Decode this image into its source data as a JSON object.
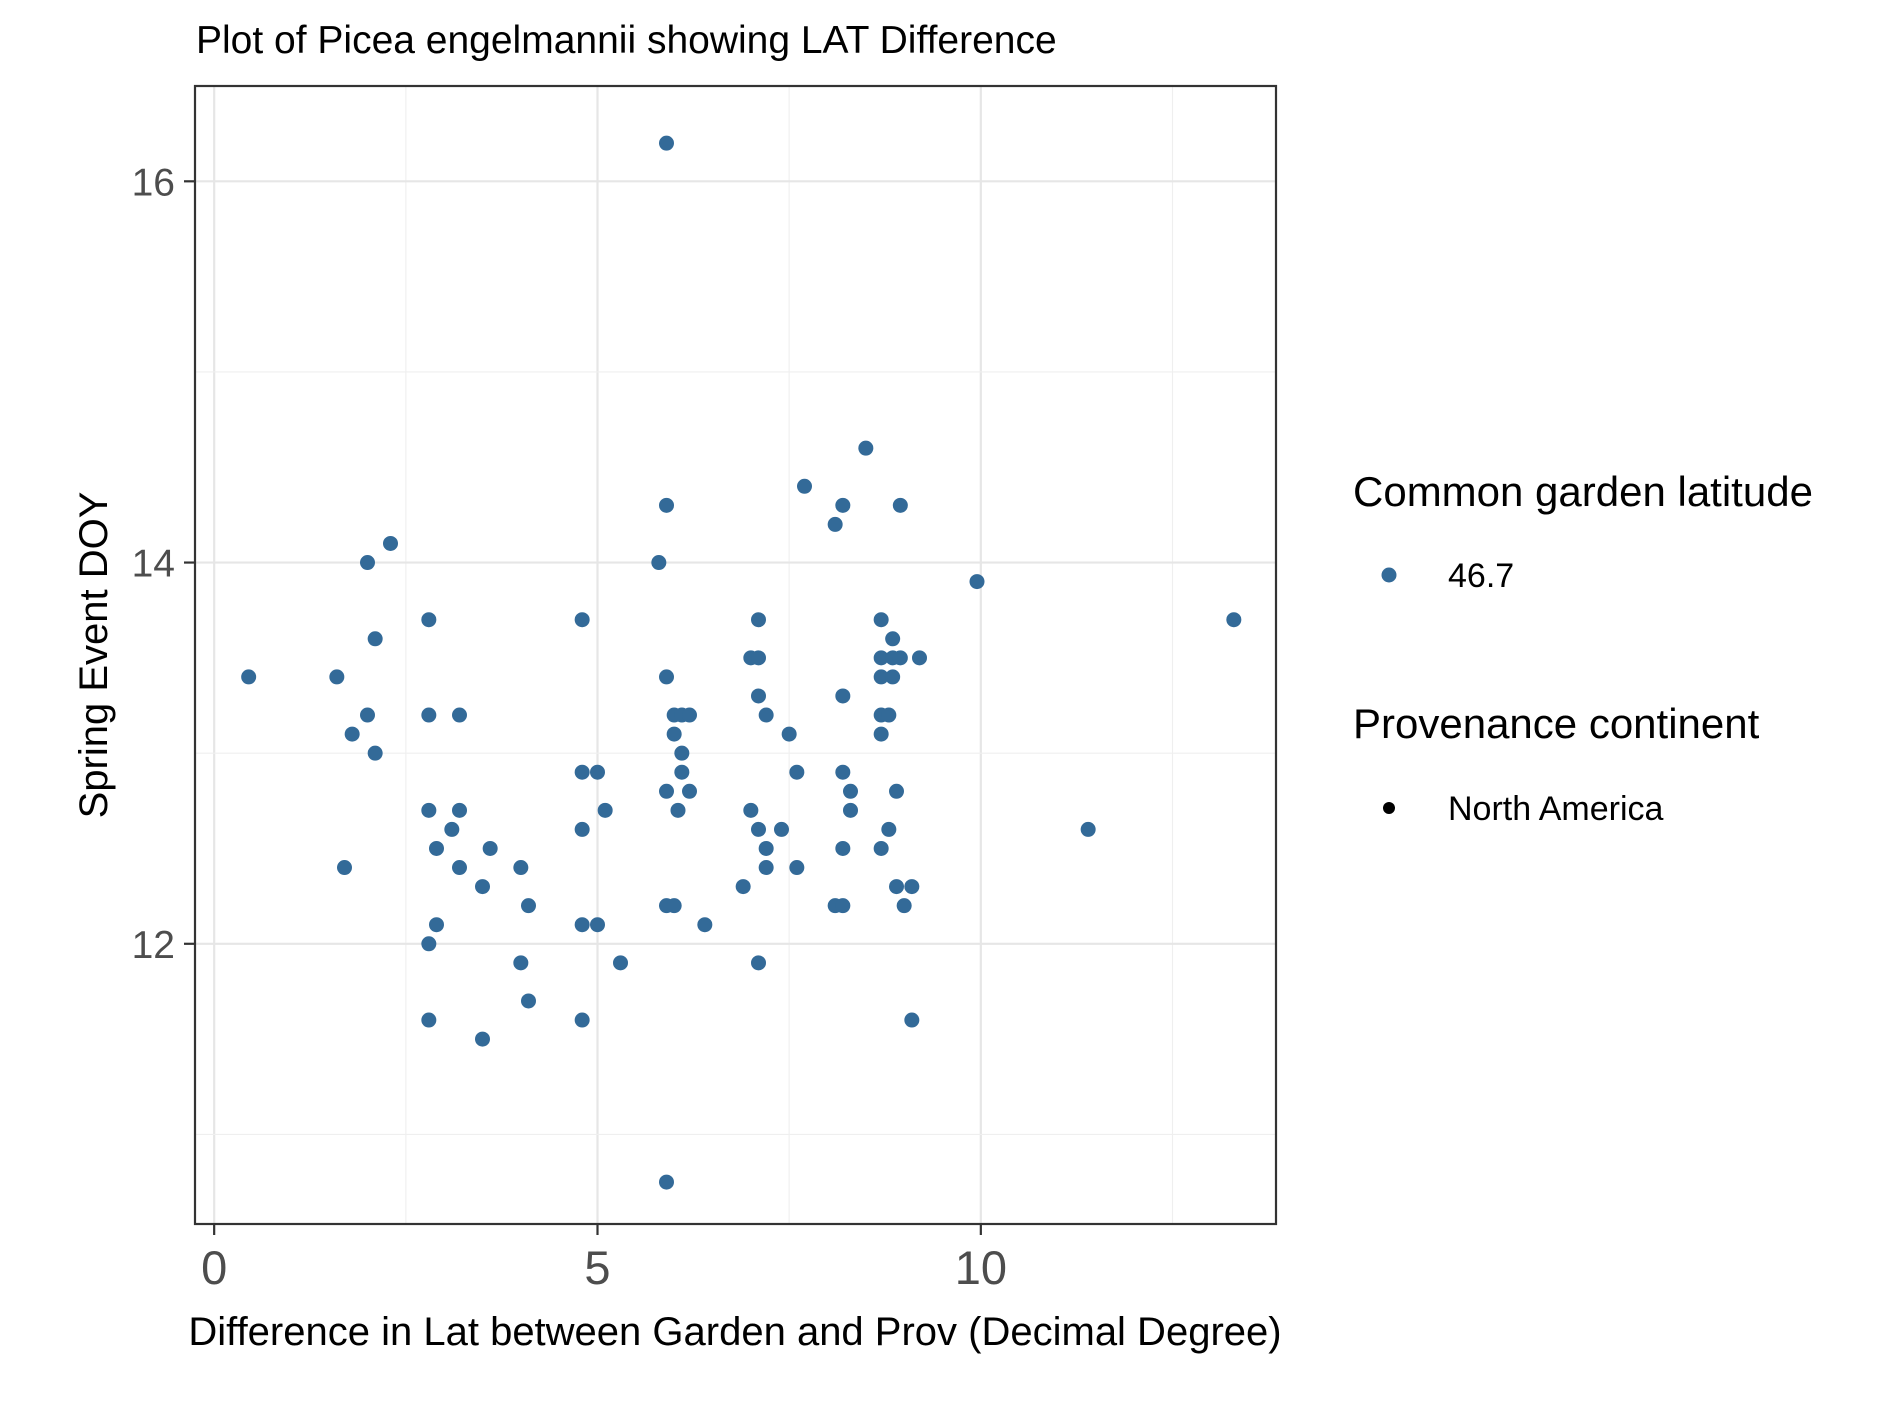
{
  "chart_data": {
    "type": "scatter",
    "title": "Plot of Picea engelmannii showing LAT Difference",
    "xlabel": "Difference in Lat between Garden and Prov (Decimal Degree)",
    "ylabel": "Spring Event DOY",
    "xlim": [
      -0.25,
      13.85
    ],
    "ylim": [
      10.53,
      16.5
    ],
    "x_ticks": [
      0,
      5,
      10
    ],
    "y_ticks": [
      12,
      14,
      16
    ],
    "grid": true,
    "point_color": "#336a98",
    "legend_placement": "right",
    "legend": [
      {
        "title": "Common garden latitude",
        "entries": [
          {
            "label": "46.7",
            "color": "#336a98"
          }
        ]
      },
      {
        "title": "Provenance continent",
        "entries": [
          {
            "label": "North America",
            "color": "#000000"
          }
        ]
      }
    ],
    "series": [
      {
        "name": "46.7",
        "points": [
          [
            0.45,
            13.4
          ],
          [
            1.6,
            13.4
          ],
          [
            1.8,
            13.1
          ],
          [
            1.7,
            12.4
          ],
          [
            2.0,
            14.0
          ],
          [
            2.0,
            13.2
          ],
          [
            2.1,
            13.0
          ],
          [
            2.1,
            13.6
          ],
          [
            2.3,
            14.1
          ],
          [
            2.8,
            13.7
          ],
          [
            2.8,
            13.2
          ],
          [
            2.8,
            12.7
          ],
          [
            2.8,
            12.0
          ],
          [
            2.8,
            11.6
          ],
          [
            2.9,
            12.5
          ],
          [
            2.9,
            12.1
          ],
          [
            3.2,
            13.2
          ],
          [
            3.1,
            12.6
          ],
          [
            3.2,
            12.7
          ],
          [
            3.2,
            12.4
          ],
          [
            3.5,
            12.3
          ],
          [
            3.5,
            11.5
          ],
          [
            3.6,
            12.5
          ],
          [
            4.0,
            12.4
          ],
          [
            4.0,
            11.9
          ],
          [
            4.1,
            12.2
          ],
          [
            4.1,
            11.7
          ],
          [
            4.8,
            13.7
          ],
          [
            4.8,
            12.9
          ],
          [
            4.8,
            12.6
          ],
          [
            4.8,
            12.1
          ],
          [
            4.8,
            11.6
          ],
          [
            5.0,
            12.9
          ],
          [
            5.0,
            12.1
          ],
          [
            5.1,
            12.7
          ],
          [
            5.3,
            11.9
          ],
          [
            5.8,
            14.0
          ],
          [
            5.9,
            16.2
          ],
          [
            5.9,
            14.3
          ],
          [
            5.9,
            13.4
          ],
          [
            5.9,
            12.8
          ],
          [
            5.9,
            12.2
          ],
          [
            5.9,
            10.75
          ],
          [
            6.0,
            13.2
          ],
          [
            6.0,
            13.1
          ],
          [
            6.0,
            12.2
          ],
          [
            6.1,
            13.2
          ],
          [
            6.1,
            13.0
          ],
          [
            6.1,
            12.9
          ],
          [
            6.05,
            12.7
          ],
          [
            6.2,
            13.2
          ],
          [
            6.2,
            12.8
          ],
          [
            6.4,
            12.1
          ],
          [
            6.9,
            12.3
          ],
          [
            7.0,
            13.5
          ],
          [
            7.0,
            12.7
          ],
          [
            7.1,
            13.7
          ],
          [
            7.1,
            13.5
          ],
          [
            7.1,
            13.3
          ],
          [
            7.1,
            12.6
          ],
          [
            7.1,
            11.9
          ],
          [
            7.2,
            13.2
          ],
          [
            7.2,
            12.5
          ],
          [
            7.2,
            12.4
          ],
          [
            7.4,
            12.6
          ],
          [
            7.5,
            13.1
          ],
          [
            7.6,
            12.9
          ],
          [
            7.6,
            12.4
          ],
          [
            7.7,
            14.4
          ],
          [
            8.1,
            14.2
          ],
          [
            8.1,
            12.2
          ],
          [
            8.2,
            14.3
          ],
          [
            8.2,
            13.3
          ],
          [
            8.2,
            12.9
          ],
          [
            8.2,
            12.5
          ],
          [
            8.2,
            12.2
          ],
          [
            8.3,
            12.8
          ],
          [
            8.3,
            12.7
          ],
          [
            8.5,
            14.6
          ],
          [
            8.7,
            13.7
          ],
          [
            8.7,
            13.5
          ],
          [
            8.7,
            13.4
          ],
          [
            8.7,
            13.2
          ],
          [
            8.7,
            13.1
          ],
          [
            8.7,
            12.5
          ],
          [
            8.8,
            13.2
          ],
          [
            8.8,
            12.6
          ],
          [
            8.85,
            13.6
          ],
          [
            8.85,
            13.5
          ],
          [
            8.85,
            13.4
          ],
          [
            8.9,
            12.3
          ],
          [
            8.9,
            12.8
          ],
          [
            8.95,
            14.3
          ],
          [
            8.95,
            13.5
          ],
          [
            9.0,
            12.2
          ],
          [
            9.1,
            11.6
          ],
          [
            9.1,
            12.3
          ],
          [
            9.2,
            13.5
          ],
          [
            9.95,
            13.9
          ],
          [
            11.4,
            12.6
          ],
          [
            13.3,
            13.7
          ]
        ]
      }
    ]
  }
}
